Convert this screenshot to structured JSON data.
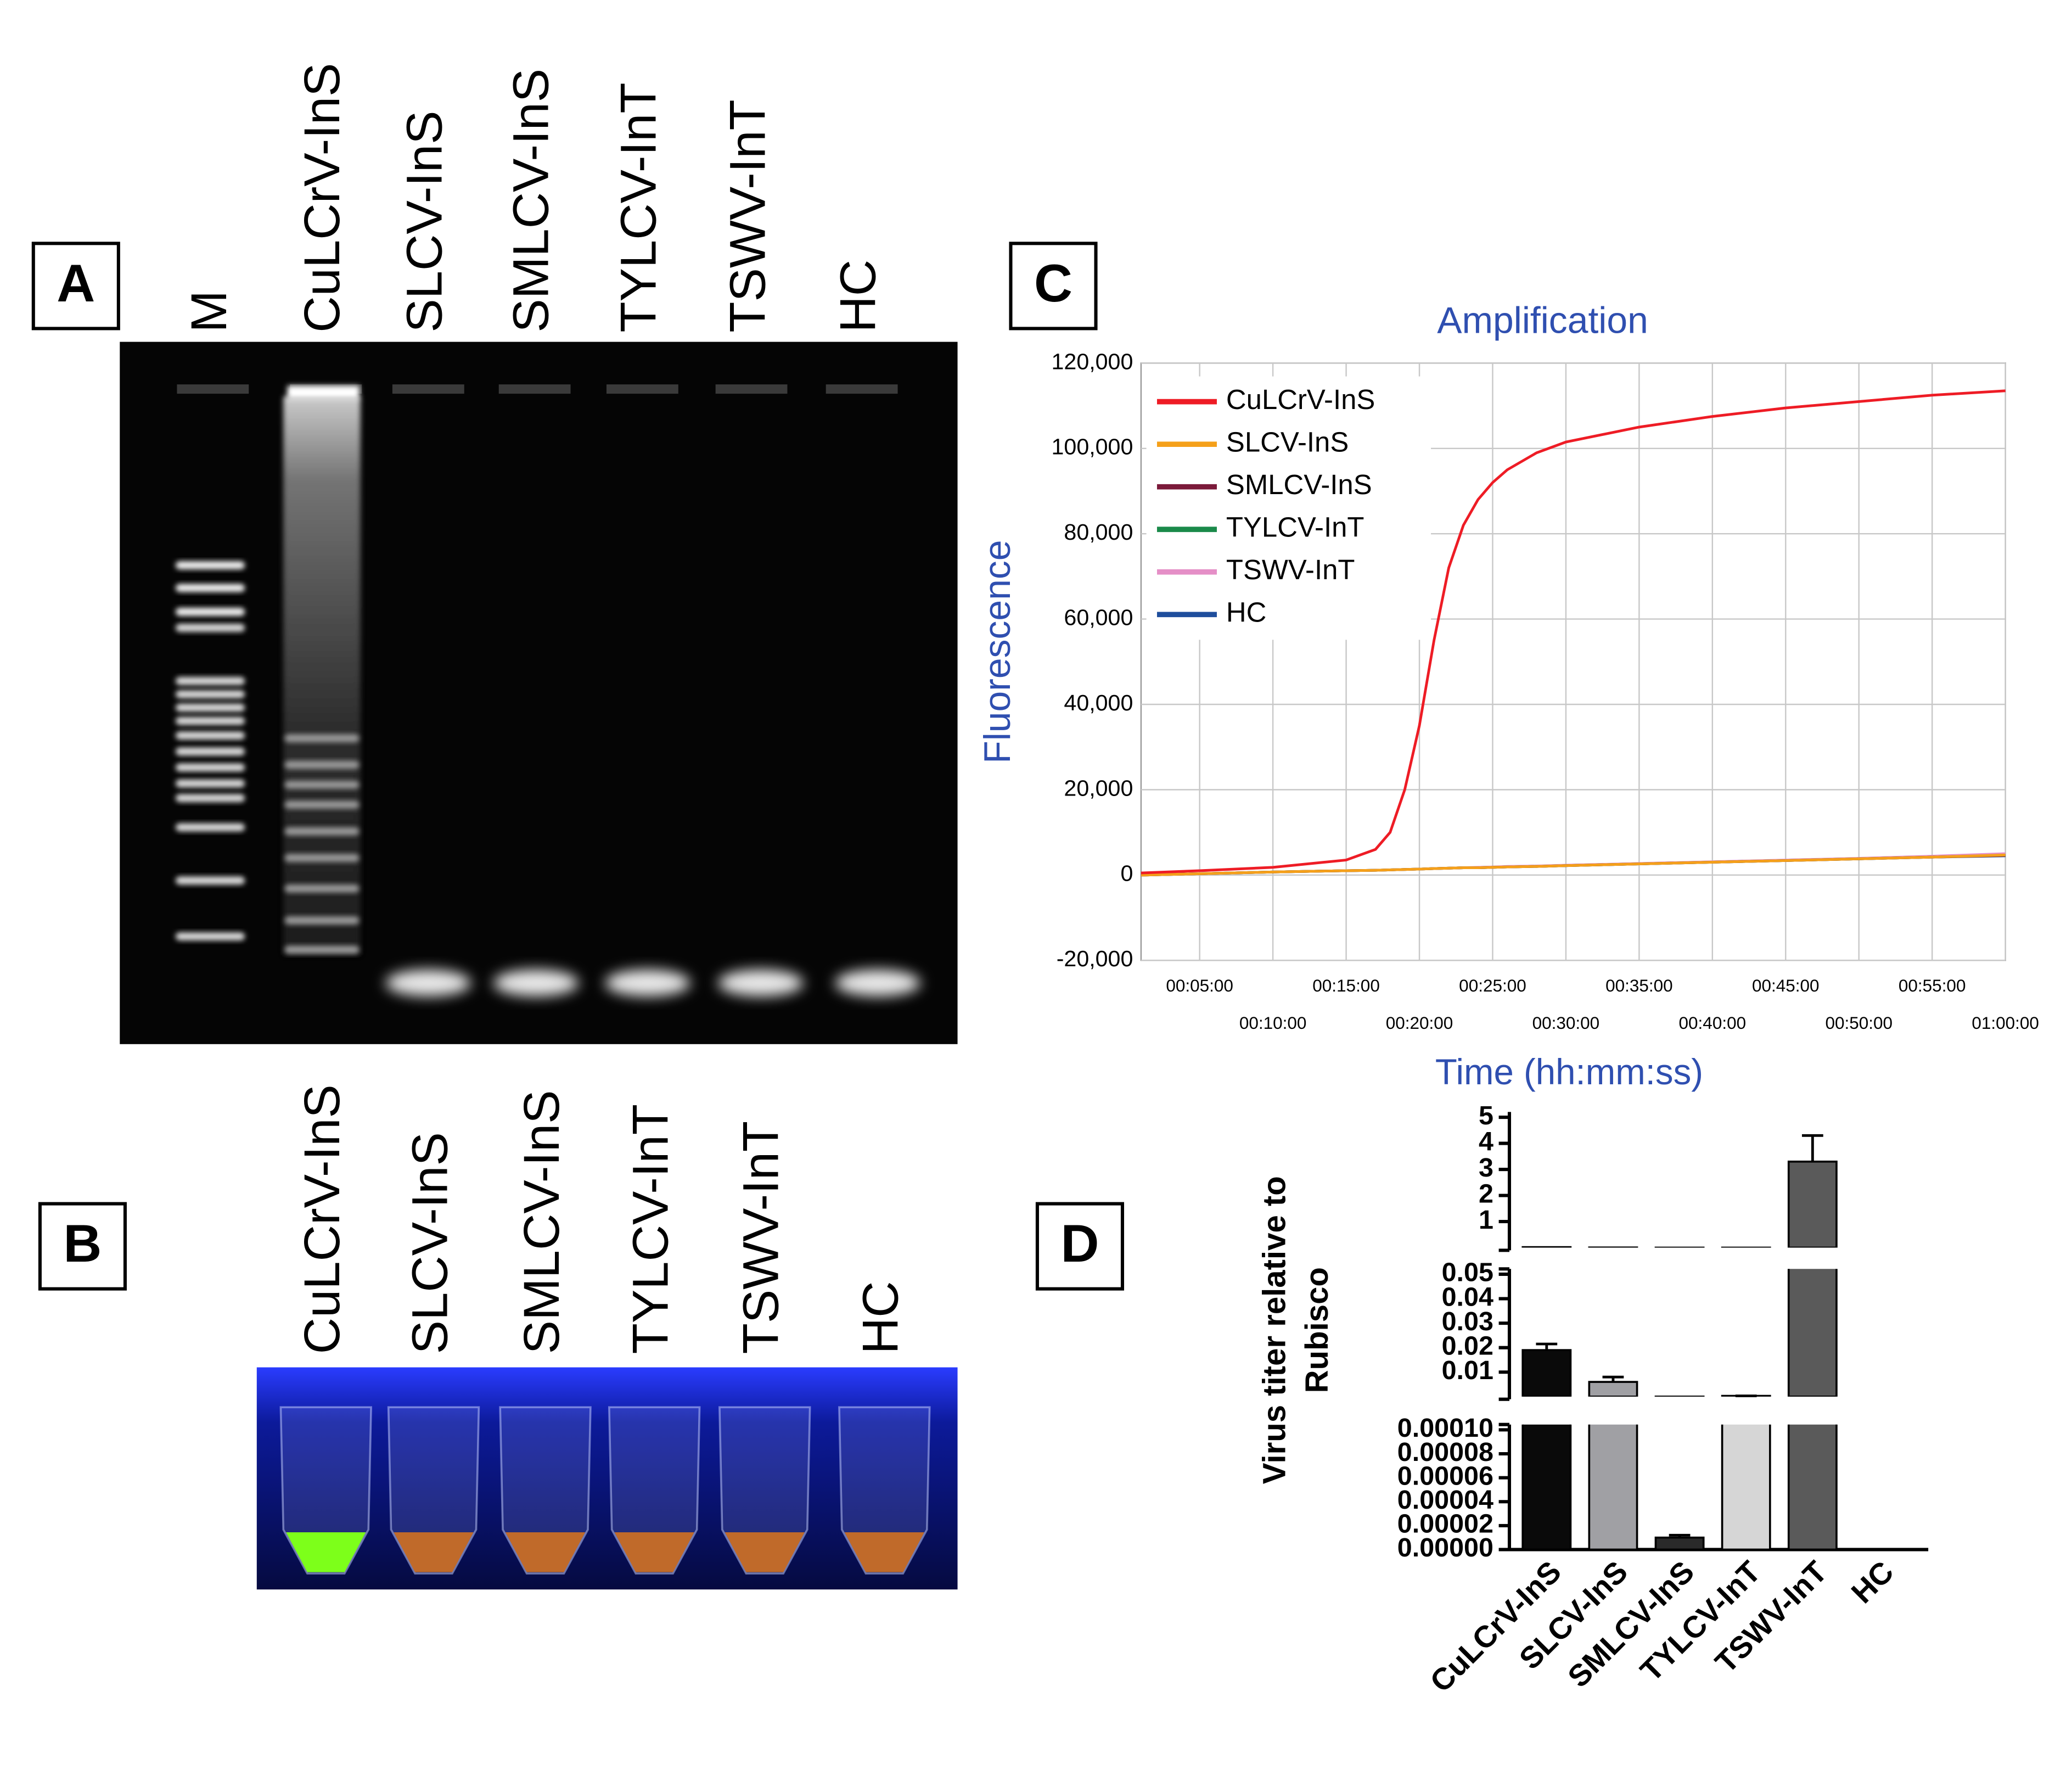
{
  "panel_a": {
    "label": "A",
    "lanes": [
      "M",
      "CuLCrV-InS",
      "SLCV-InS",
      "SMLCV-InS",
      "TYLCV-InT",
      "TSWV-InT",
      "HC"
    ]
  },
  "panel_b": {
    "label": "B",
    "lanes": [
      "CuLCrV-InS",
      "SLCV-InS",
      "SMLCV-InS",
      "TYLCV-InT",
      "TSWV-InT",
      "HC"
    ]
  },
  "chart_data": [
    {
      "type": "line",
      "panel_label": "C",
      "title": "Amplification",
      "x_label": "Time (hh:mm:ss)",
      "y_label": "Fluorescence",
      "x": [
        1,
        5,
        10,
        15,
        17,
        18,
        19,
        20,
        21,
        22,
        23,
        24,
        25,
        26,
        28,
        30,
        35,
        40,
        45,
        50,
        55,
        60
      ],
      "xlim": [
        1,
        60
      ],
      "xticks": [
        {
          "value": 5,
          "label": "00:05:00"
        },
        {
          "value": 10,
          "label": "00:10:00"
        },
        {
          "value": 15,
          "label": "00:15:00"
        },
        {
          "value": 20,
          "label": "00:20:00"
        },
        {
          "value": 25,
          "label": "00:25:00"
        },
        {
          "value": 30,
          "label": "00:30:00"
        },
        {
          "value": 35,
          "label": "00:35:00"
        },
        {
          "value": 40,
          "label": "00:40:00"
        },
        {
          "value": 45,
          "label": "00:45:00"
        },
        {
          "value": 50,
          "label": "00:50:00"
        },
        {
          "value": 55,
          "label": "00:55:00"
        },
        {
          "value": 60,
          "label": "01:00:00"
        }
      ],
      "ylim": [
        -20000,
        120000
      ],
      "yticks": [
        {
          "value": -20000,
          "label": "-20,000"
        },
        0,
        {
          "value": 20000,
          "label": "20,000"
        },
        {
          "value": 40000,
          "label": "40,000"
        },
        {
          "value": 60000,
          "label": "60,000"
        },
        {
          "value": 80000,
          "label": "80,000"
        },
        {
          "value": 100000,
          "label": "100,000"
        },
        {
          "value": 120000,
          "label": "120,000"
        }
      ],
      "grid": true,
      "legend": "upper-left",
      "series": [
        {
          "name": "CuLCrV-InS",
          "color": "#ee1c25",
          "values": [
            500,
            1000,
            1800,
            3500,
            6000,
            10000,
            20000,
            35000,
            55000,
            72000,
            82000,
            88000,
            92000,
            95000,
            99000,
            101500,
            105000,
            107500,
            109500,
            111000,
            112500,
            113500
          ]
        },
        {
          "name": "SLCV-InS",
          "color": "#f5a01a",
          "values": [
            0,
            300,
            700,
            1000,
            1100,
            1200,
            1300,
            1400,
            1500,
            1600,
            1700,
            1700,
            1800,
            1900,
            2000,
            2200,
            2600,
            3000,
            3400,
            3800,
            4200,
            4700
          ]
        },
        {
          "name": "SMLCV-InS",
          "color": "#7b1a3a",
          "values": [
            0,
            300,
            700,
            1000,
            1100,
            1200,
            1300,
            1400,
            1500,
            1600,
            1700,
            1700,
            1800,
            1900,
            2000,
            2200,
            2600,
            3000,
            3400,
            3800,
            4200,
            4600
          ]
        },
        {
          "name": "TYLCV-InT",
          "color": "#1a8a4a",
          "values": [
            0,
            300,
            700,
            1000,
            1100,
            1200,
            1300,
            1400,
            1500,
            1600,
            1700,
            1700,
            1800,
            1900,
            2000,
            2200,
            2600,
            3000,
            3400,
            3800,
            4200,
            4600
          ]
        },
        {
          "name": "TSWV-InT",
          "color": "#e58fc7",
          "values": [
            0,
            300,
            700,
            1000,
            1100,
            1200,
            1300,
            1400,
            1500,
            1600,
            1700,
            1800,
            1900,
            2000,
            2100,
            2300,
            2700,
            3100,
            3500,
            3900,
            4400,
            5000
          ]
        },
        {
          "name": "HC",
          "color": "#1f4e9c",
          "values": [
            0,
            300,
            700,
            1000,
            1100,
            1200,
            1300,
            1400,
            1500,
            1600,
            1700,
            1700,
            1800,
            1900,
            2000,
            2200,
            2600,
            3000,
            3400,
            3800,
            4200,
            4500
          ]
        }
      ]
    },
    {
      "type": "bar",
      "panel_label": "D",
      "y_label": [
        "Virus titer relative to",
        "Rubisco"
      ],
      "categories": [
        "CuLCrV-InS",
        "SLCV-InS",
        "SMLCV-InS",
        "TYLCV-InT",
        "TSWV-InT",
        "HC"
      ],
      "values": [
        0.019,
        0.006,
        1e-05,
        0.0003,
        3.3,
        0
      ],
      "errors": [
        0.0025,
        0.002,
        2e-06,
        0,
        1.0,
        0
      ],
      "colors": [
        "#0a0a0a",
        "#a0a0a4",
        "#2a2a2a",
        "#d6d6d6",
        "#5a5a5a",
        "#ffffff"
      ],
      "y_segments": [
        {
          "ylim": [
            0,
            0.0001
          ],
          "yticks": [
            {
              "value": 0,
              "label": "0.00000"
            },
            {
              "value": 2e-05,
              "label": "0.00002"
            },
            {
              "value": 4e-05,
              "label": "0.00004"
            },
            {
              "value": 6e-05,
              "label": "0.00006"
            },
            {
              "value": 8e-05,
              "label": "0.00008"
            },
            {
              "value": 0.0001,
              "label": "0.00010"
            }
          ]
        },
        {
          "ylim": [
            0,
            0.05
          ],
          "yticks": [
            0.01,
            0.02,
            0.03,
            0.04,
            0.05
          ]
        },
        {
          "ylim": [
            0,
            5
          ],
          "yticks": [
            1,
            2,
            3,
            4,
            5
          ]
        }
      ]
    }
  ]
}
